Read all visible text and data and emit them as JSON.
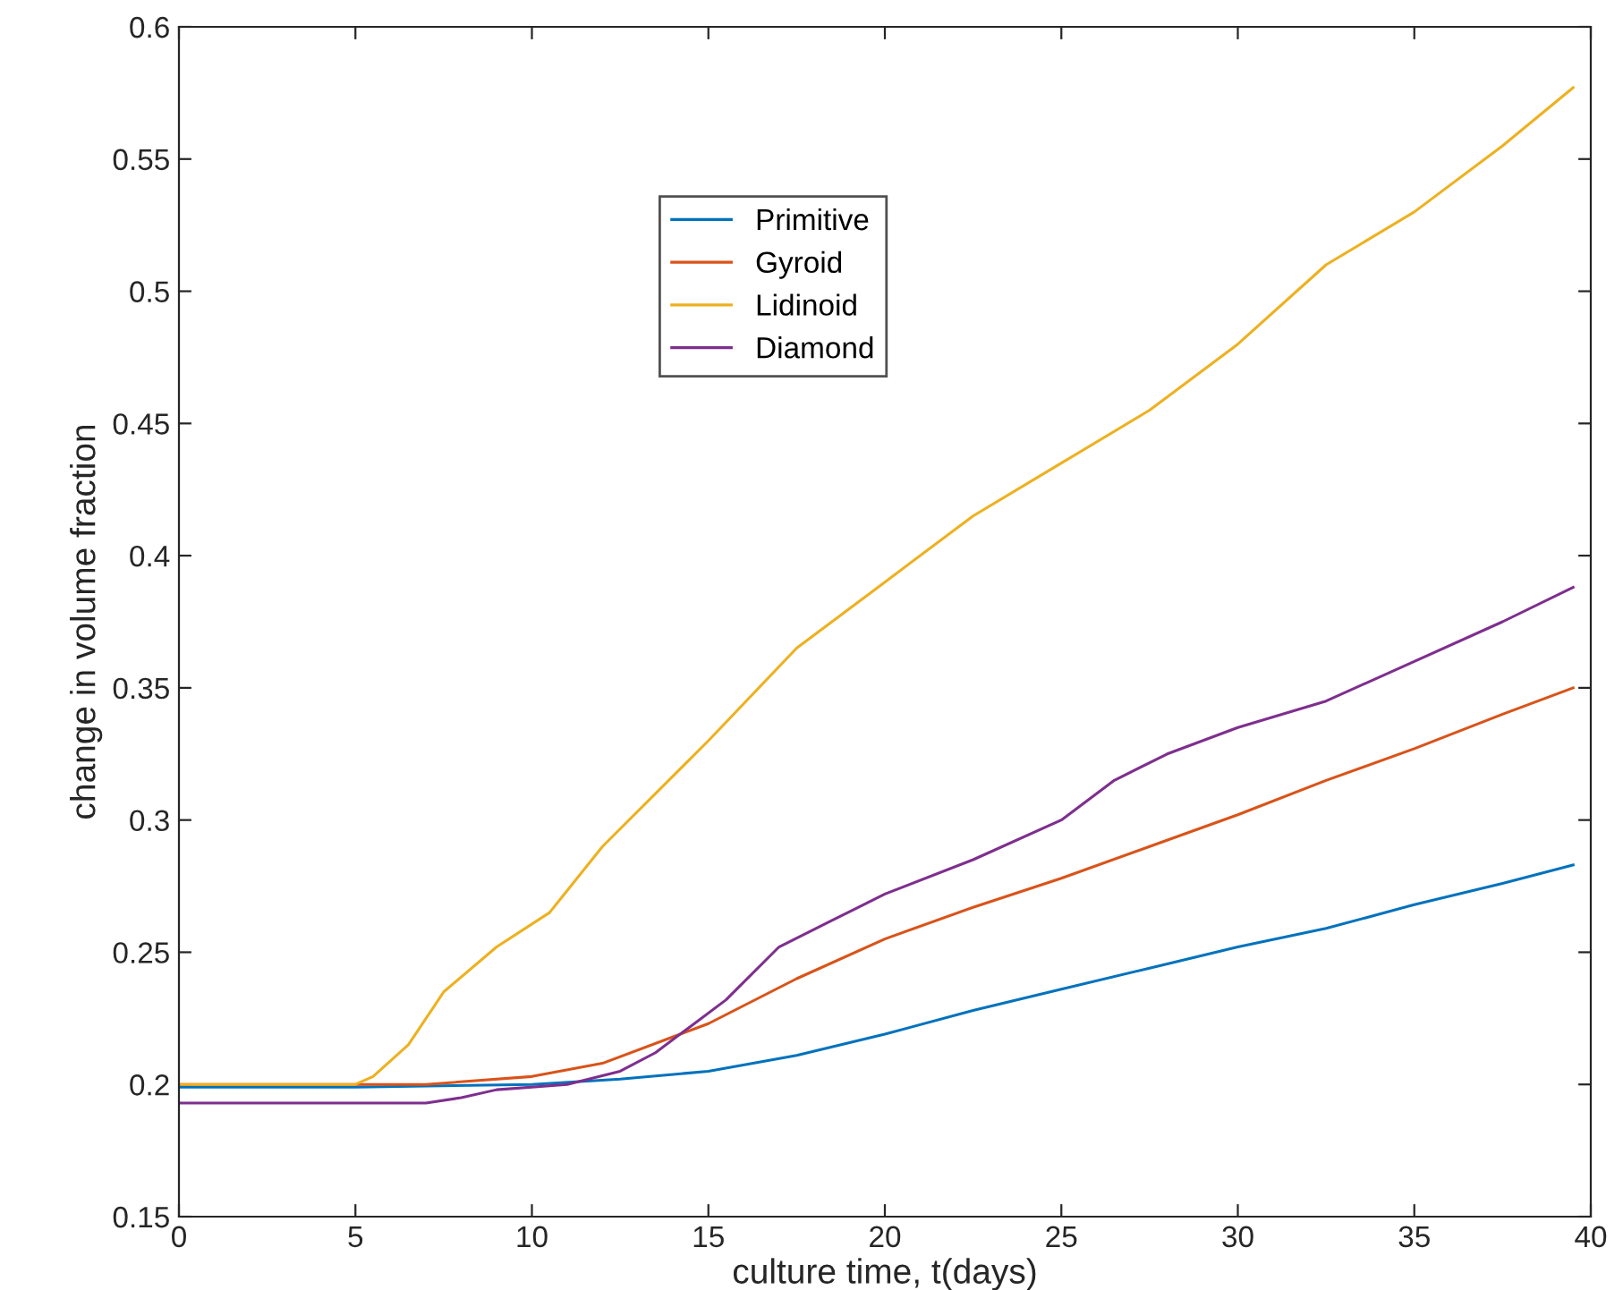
{
  "chart_data": {
    "type": "line",
    "xlabel": "culture time, t(days)",
    "ylabel": "change in volume fraction",
    "xlim": [
      0,
      40
    ],
    "ylim": [
      0.15,
      0.6
    ],
    "xticks": [
      0,
      5,
      10,
      15,
      20,
      25,
      30,
      35,
      40
    ],
    "yticks": [
      {
        "value": 0.15,
        "label": "0.15"
      },
      {
        "value": 0.2,
        "label": "0.2"
      },
      {
        "value": 0.25,
        "label": "0.25"
      },
      {
        "value": 0.3,
        "label": "0.3"
      },
      {
        "value": 0.35,
        "label": "0.35"
      },
      {
        "value": 0.4,
        "label": "0.4"
      },
      {
        "value": 0.45,
        "label": "0.45"
      },
      {
        "value": 0.5,
        "label": "0.5"
      },
      {
        "value": 0.55,
        "label": "0.55"
      },
      {
        "value": 0.6,
        "label": "0.6"
      }
    ],
    "grid": false,
    "legend": "top",
    "marker": "none",
    "line_style": "solid",
    "series": [
      {
        "name": "Primitive",
        "color": "#0072bd",
        "x": [
          0,
          5,
          10,
          12.5,
          15,
          17.5,
          20,
          22.5,
          25,
          27.5,
          30,
          32.5,
          35,
          37.5,
          39.5
        ],
        "values": [
          0.199,
          0.199,
          0.2,
          0.202,
          0.205,
          0.211,
          0.219,
          0.228,
          0.236,
          0.244,
          0.252,
          0.259,
          0.268,
          0.276,
          0.283
        ]
      },
      {
        "name": "Gyroid",
        "color": "#d95319",
        "x": [
          0,
          5,
          7,
          10,
          12,
          14,
          15,
          17.5,
          20,
          22.5,
          25,
          27.5,
          30,
          32.5,
          35,
          37.5,
          39.5
        ],
        "values": [
          0.2,
          0.2,
          0.2,
          0.203,
          0.208,
          0.218,
          0.223,
          0.24,
          0.255,
          0.267,
          0.278,
          0.29,
          0.302,
          0.315,
          0.327,
          0.34,
          0.35
        ]
      },
      {
        "name": "Lidinoid",
        "color": "#edb120",
        "x": [
          0,
          5,
          5.5,
          6.5,
          7.5,
          9,
          10.5,
          12,
          13.5,
          15,
          17.5,
          20,
          22.5,
          25,
          27.5,
          30,
          32.5,
          35,
          37.5,
          39.5
        ],
        "values": [
          0.2,
          0.2,
          0.203,
          0.215,
          0.235,
          0.252,
          0.265,
          0.29,
          0.31,
          0.33,
          0.365,
          0.39,
          0.415,
          0.435,
          0.455,
          0.48,
          0.51,
          0.53,
          0.555,
          0.577
        ]
      },
      {
        "name": "Diamond",
        "color": "#7e2f8e",
        "x": [
          0,
          5,
          7,
          8,
          9,
          11,
          12.5,
          13.5,
          14.5,
          15.5,
          17,
          18.5,
          20,
          22.5,
          25,
          26.5,
          28,
          30,
          32.5,
          35,
          37.5,
          39.5
        ],
        "values": [
          0.193,
          0.193,
          0.193,
          0.195,
          0.198,
          0.2,
          0.205,
          0.212,
          0.222,
          0.232,
          0.252,
          0.262,
          0.272,
          0.285,
          0.3,
          0.315,
          0.325,
          0.335,
          0.345,
          0.36,
          0.375,
          0.388
        ]
      }
    ]
  }
}
